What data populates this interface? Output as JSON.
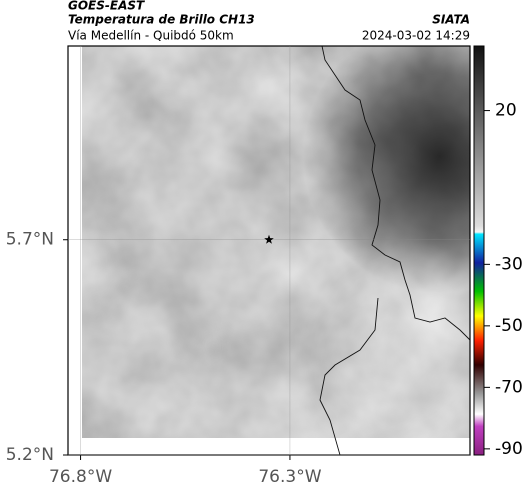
{
  "chart_data": {
    "type": "map",
    "title": "GOES-EAST",
    "subtitle": "Temperatura de Brillo CH13",
    "caption": "Vía Medellín - Quibdó 50km",
    "source": "SIATA",
    "timestamp": "2024-03-02 14:29",
    "xlim": [
      -76.83,
      -75.87
    ],
    "ylim": [
      5.2,
      6.15
    ],
    "xticks": [
      {
        "value": -76.8,
        "label": "76.8°W"
      },
      {
        "value": -76.3,
        "label": "76.3°W"
      }
    ],
    "yticks": [
      {
        "value": 5.2,
        "label": "5.2°N"
      },
      {
        "value": 5.7,
        "label": "5.7°N"
      }
    ],
    "grid": true,
    "marker": {
      "lon": -76.35,
      "lat": 5.7
    },
    "colorbar": {
      "lim": [
        -92,
        41
      ],
      "ticks": [
        20,
        -30,
        -50,
        -70,
        -90
      ]
    }
  }
}
